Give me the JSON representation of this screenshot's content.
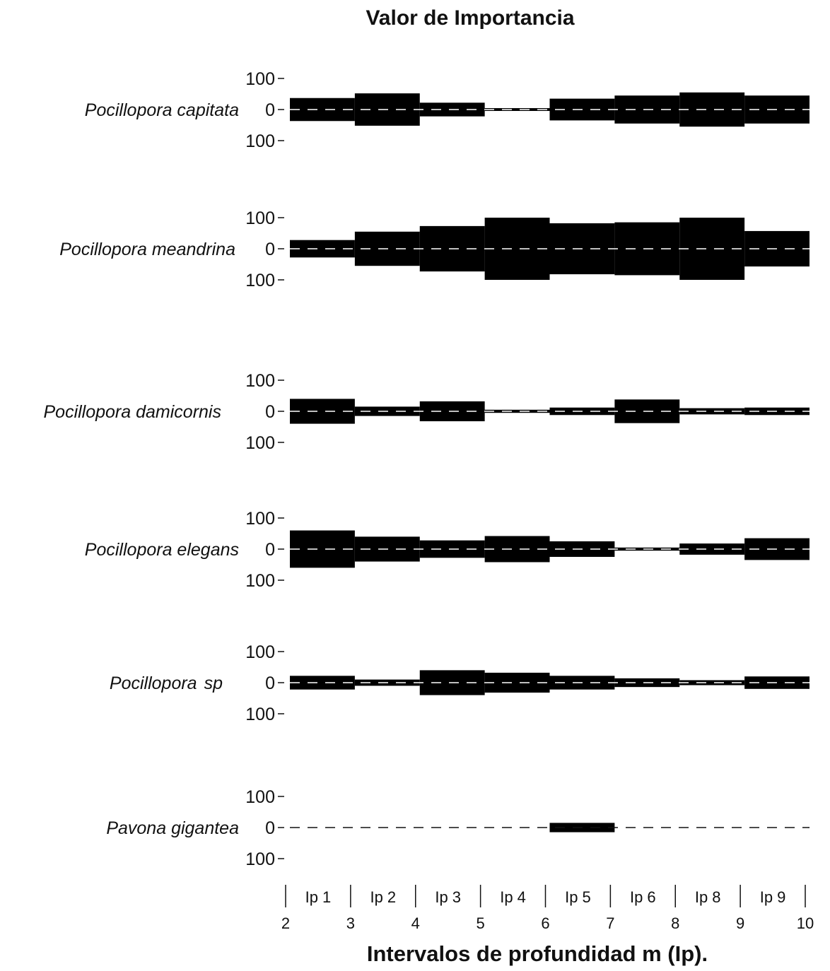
{
  "chart_data": {
    "type": "kite",
    "title": "Valor de Importancia",
    "xlabel": "Intervalos de profundidad m (Ip).",
    "depth_ticks": [
      2,
      3,
      4,
      5,
      6,
      7,
      8,
      9,
      10
    ],
    "interval_labels": [
      "Ip 1",
      "Ip 2",
      "Ip 3",
      "Ip 4",
      "Ip 5",
      "Ip 6",
      "Ip 8",
      "Ip 9"
    ],
    "value_axis": {
      "top_label": "100",
      "zero_label": "0",
      "bottom_label": "100",
      "max": 100
    },
    "series": [
      {
        "name": "Pocillopora capitata",
        "suffix": "",
        "values": [
          37,
          52,
          22,
          4,
          35,
          45,
          55,
          45
        ]
      },
      {
        "name": "Pocillopora meandrina",
        "suffix": "",
        "values": [
          28,
          55,
          73,
          100,
          82,
          85,
          100,
          57
        ]
      },
      {
        "name": "Pocillopora damicornis",
        "suffix": "",
        "values": [
          40,
          15,
          32,
          5,
          12,
          38,
          10,
          12
        ]
      },
      {
        "name": "Pocillopora elegans",
        "suffix": "",
        "values": [
          60,
          40,
          28,
          42,
          25,
          5,
          18,
          35
        ]
      },
      {
        "name": "Pocillopora",
        "suffix": "sp",
        "values": [
          22,
          10,
          40,
          32,
          22,
          14,
          8,
          20
        ]
      },
      {
        "name": "Pavona gigantea",
        "suffix": "",
        "values": [
          0,
          0,
          0,
          0,
          15,
          0,
          0,
          0
        ]
      }
    ],
    "grid": false,
    "legend": "none"
  }
}
